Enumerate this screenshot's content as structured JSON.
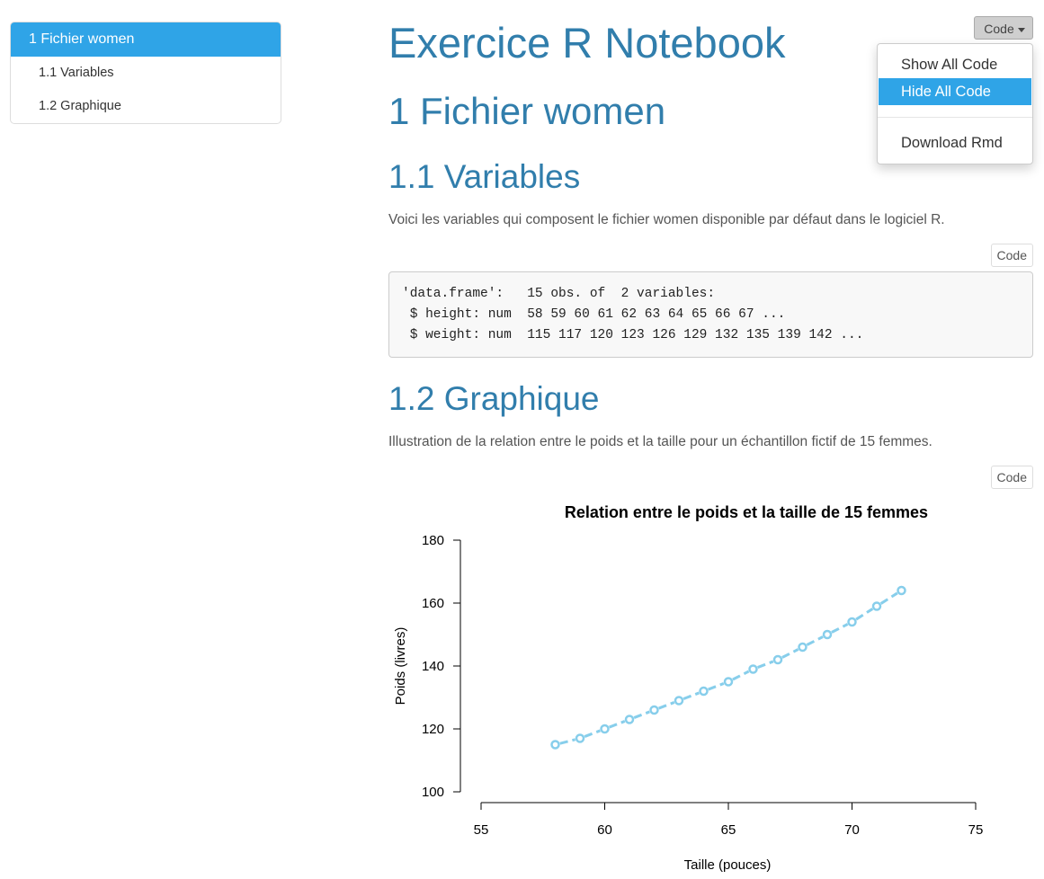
{
  "toc": {
    "items": [
      {
        "label": "1 Fichier women"
      },
      {
        "label": "1.1 Variables"
      },
      {
        "label": "1.2 Graphique"
      }
    ]
  },
  "code_menu": {
    "toggle_label": "Code",
    "items": [
      {
        "label": "Show All Code"
      },
      {
        "label": "Hide All Code"
      },
      {
        "label": "Download Rmd"
      }
    ]
  },
  "document": {
    "title": "Exercice R Notebook",
    "section1_title": "1 Fichier women",
    "section11_title": "1.1 Variables",
    "section11_text": "Voici les variables qui composent le fichier women disponible par défaut dans le logiciel R.",
    "section11_code_button": "Code",
    "output_lines": [
      "'data.frame':   15 obs. of  2 variables:",
      " $ height: num  58 59 60 61 62 63 64 65 66 67 ...",
      " $ weight: num  115 117 120 123 126 129 132 135 139 142 ..."
    ],
    "section12_title": "1.2 Graphique",
    "section12_text": "Illustration de la relation entre le poids et la taille pour un échantillon fictif de 15 femmes.",
    "section12_code_button": "Code"
  },
  "chart_data": {
    "type": "line",
    "title": "Relation entre le poids et la taille de 15 femmes",
    "xlabel": "Taille (pouces)",
    "ylabel": "Poids (livres)",
    "x": [
      58,
      59,
      60,
      61,
      62,
      63,
      64,
      65,
      66,
      67,
      68,
      69,
      70,
      71,
      72
    ],
    "series": [
      {
        "values": [
          115,
          117,
          120,
          123,
          126,
          129,
          132,
          135,
          139,
          142,
          146,
          150,
          154,
          159,
          164
        ]
      }
    ],
    "xlim": [
      55,
      75
    ],
    "ylim": [
      100,
      180
    ],
    "xticks": [
      "55",
      "60",
      "65",
      "70",
      "75"
    ],
    "yticks": [
      "100",
      "120",
      "140",
      "160",
      "180"
    ],
    "line_style": "dashed with open circle markers",
    "color": "#87ceeb",
    "grid": false
  }
}
